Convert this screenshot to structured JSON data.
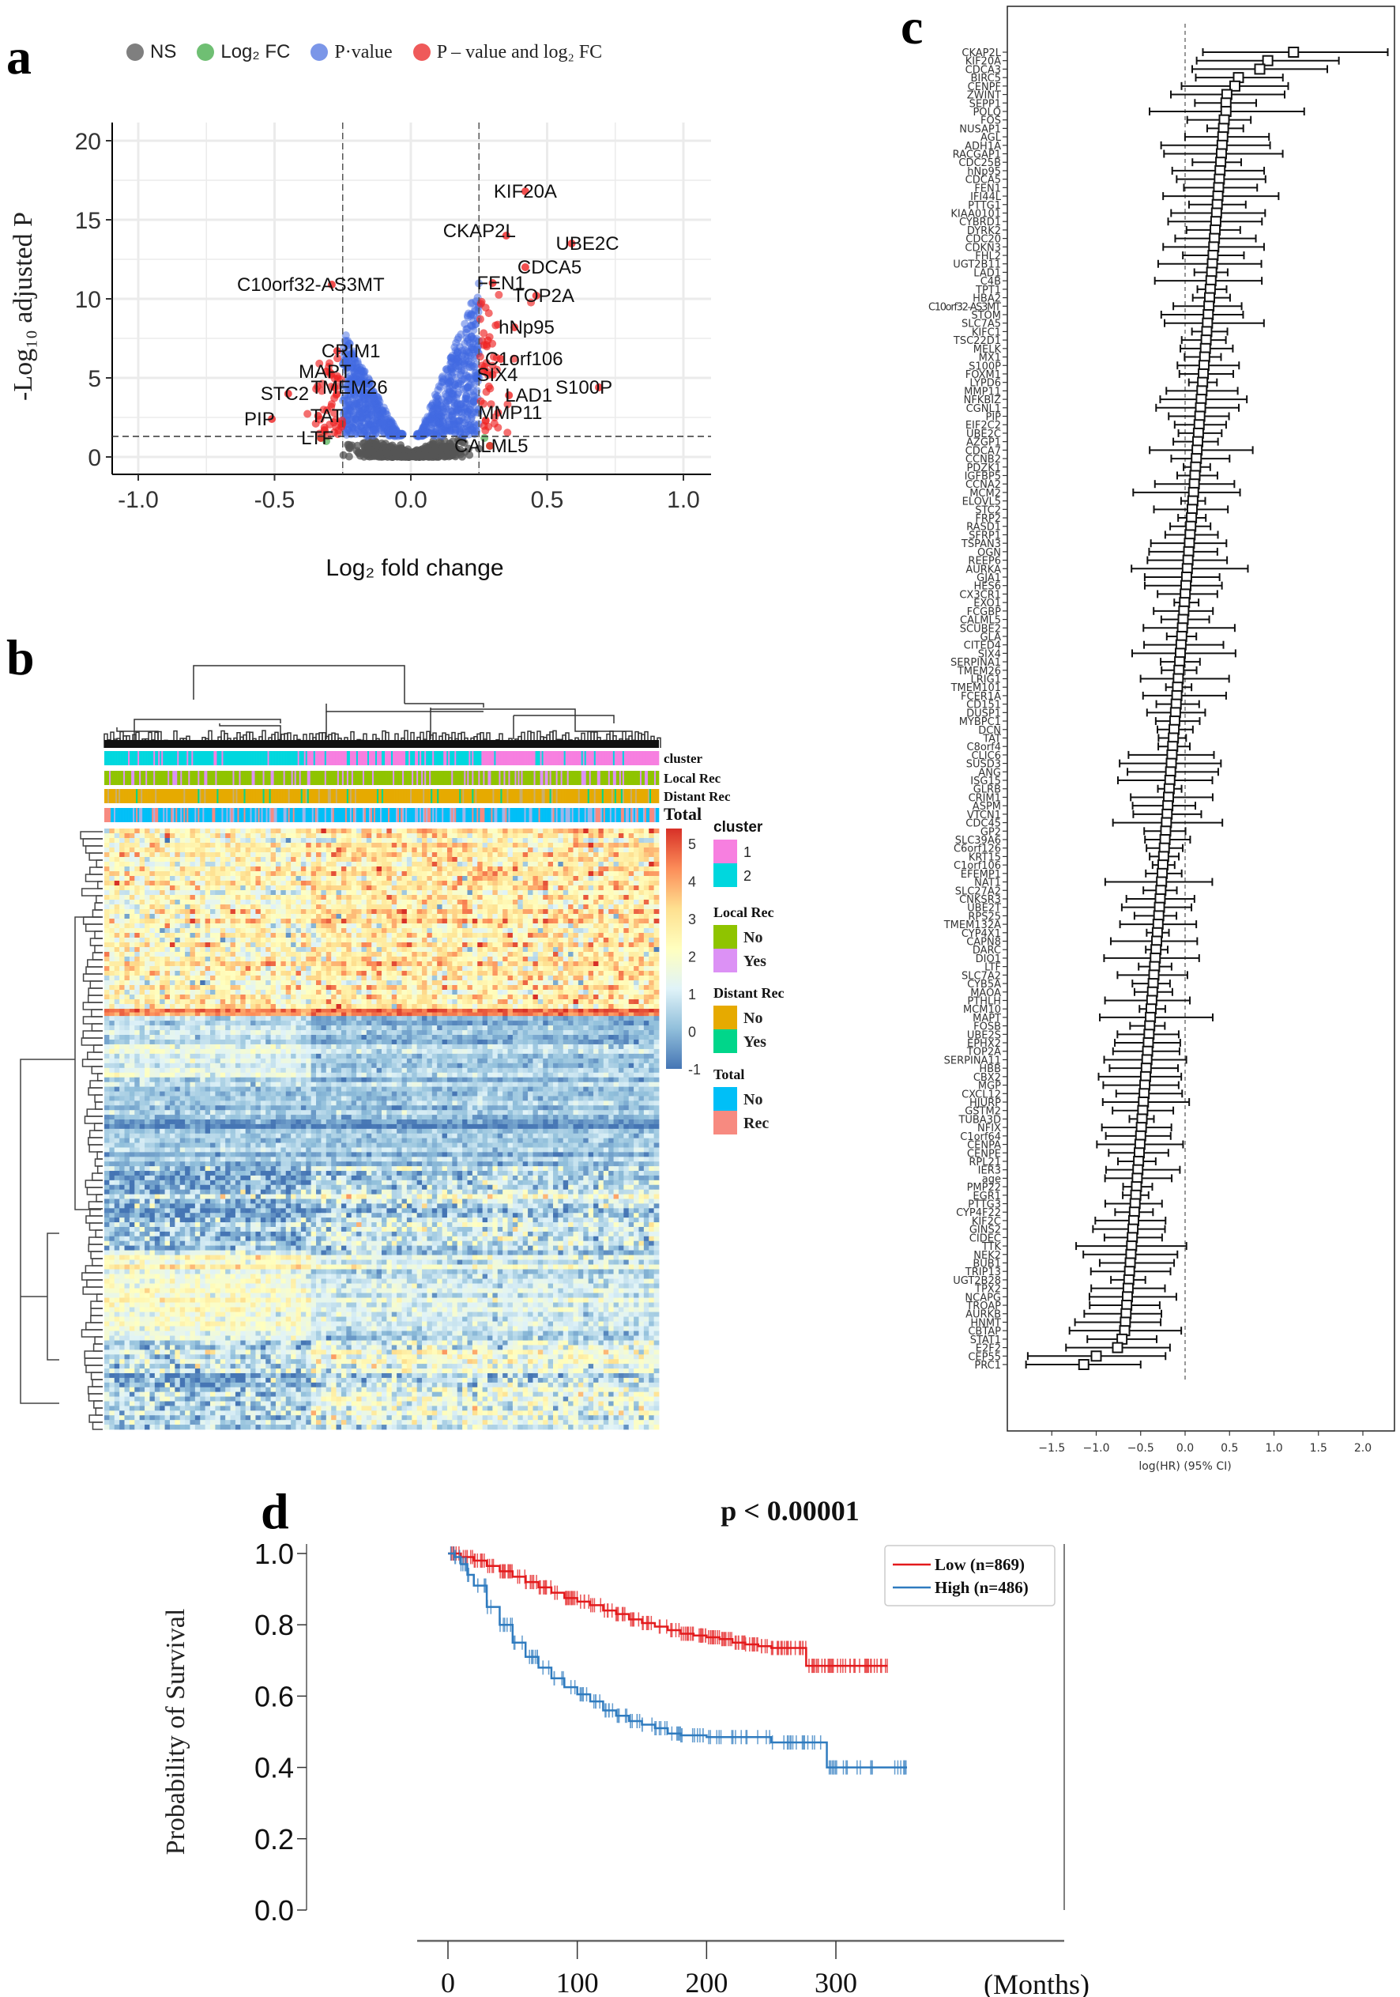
{
  "panels": {
    "a": {
      "letter": "a",
      "legend": [
        {
          "label": "NS",
          "color": "#7f7f7f"
        },
        {
          "label": "Log₂ FC",
          "color": "#6fbf73"
        },
        {
          "label": "P·value",
          "color": "#7b96e8"
        },
        {
          "label": "P – value and log₂ FC",
          "color": "#ef5a5a"
        }
      ]
    },
    "b": {
      "letter": "b",
      "annotation_labels": [
        "cluster",
        "Local Rec",
        "Distant Rec",
        "Total"
      ],
      "colorbar": {
        "ticks": [
          "5",
          "4",
          "3",
          "2",
          "1",
          "0",
          "-1"
        ],
        "min": -1,
        "max": 5.4
      },
      "legend_groups": [
        {
          "title": "cluster",
          "items": [
            {
              "label": "1",
              "color": "#f77fe0"
            },
            {
              "label": "2",
              "color": "#00d7de"
            }
          ]
        },
        {
          "title": "Local Rec",
          "items": [
            {
              "label": "No",
              "color": "#8fc400"
            },
            {
              "label": "Yes",
              "color": "#dc91f5"
            }
          ]
        },
        {
          "title": "Distant Rec",
          "items": [
            {
              "label": "No",
              "color": "#e6aa00"
            },
            {
              "label": "Yes",
              "color": "#00d68a"
            }
          ]
        },
        {
          "title": "Total",
          "items": [
            {
              "label": "No",
              "color": "#00bff7"
            },
            {
              "label": "Rec",
              "color": "#f78a80"
            }
          ]
        }
      ]
    },
    "c": {
      "letter": "c"
    },
    "d": {
      "letter": "d"
    }
  },
  "chart_data": [
    {
      "id": "volcano",
      "type": "scatter",
      "title": "",
      "xlabel": "Log₂ fold change",
      "ylabel": "-Log₁₀ adjusted P",
      "xlim": [
        -1.1,
        1.1
      ],
      "ylim": [
        -0.8,
        21
      ],
      "xticks": [
        "-1.0",
        "-0.5",
        "0.0",
        "0.5",
        "1.0"
      ],
      "xtick_values": [
        -1.0,
        -0.5,
        0.0,
        0.5,
        1.0
      ],
      "yticks": [
        "0",
        "5",
        "10",
        "15",
        "20"
      ],
      "ytick_values": [
        0,
        5,
        10,
        15,
        20
      ],
      "grid": true,
      "thresholds": {
        "log2fc": 0.25,
        "neglog10p": 1.3
      },
      "series": [
        {
          "name": "NS",
          "color": "#555555",
          "description": "dense cloud, |log2FC|<0.25 and -log10P<1.3"
        },
        {
          "name": "Log2 FC",
          "color": "#4caf50",
          "points": [
            [
              -0.33,
              1.2
            ],
            [
              -0.31,
              1.0
            ],
            [
              0.29,
              0.7
            ],
            [
              0.27,
              1.2
            ]
          ]
        },
        {
          "name": "P-value",
          "color": "#4169e1",
          "description": "dense cloud, |log2FC|<0.25 and -log10P>1.3, up to ~12.5"
        },
        {
          "name": "P-value and log2 FC",
          "color": "#ee2222",
          "description": "significant in both"
        }
      ],
      "labeled_points": [
        {
          "gene": "KIF20A",
          "x": 0.42,
          "y": 16.8
        },
        {
          "gene": "CKAP2L",
          "x": 0.35,
          "y": 14.0
        },
        {
          "gene": "UBE2C",
          "x": 0.59,
          "y": 13.5
        },
        {
          "gene": "CDCA5",
          "x": 0.42,
          "y": 12.0
        },
        {
          "gene": "C10orf32-AS3MT",
          "x": -0.29,
          "y": 10.9
        },
        {
          "gene": "FEN1",
          "x": 0.3,
          "y": 11.0
        },
        {
          "gene": "TOP2A",
          "x": 0.46,
          "y": 10.2
        },
        {
          "gene": "hNp95",
          "x": 0.38,
          "y": 8.2
        },
        {
          "gene": "CRIM1",
          "x": -0.27,
          "y": 6.7
        },
        {
          "gene": "C1orf106",
          "x": 0.33,
          "y": 6.2
        },
        {
          "gene": "SIX4",
          "x": 0.3,
          "y": 5.2
        },
        {
          "gene": "MAPT",
          "x": -0.31,
          "y": 5.4
        },
        {
          "gene": "S100P",
          "x": 0.69,
          "y": 4.4
        },
        {
          "gene": "LAD1",
          "x": 0.36,
          "y": 3.9
        },
        {
          "gene": "TMEM26",
          "x": -0.28,
          "y": 4.4
        },
        {
          "gene": "STC2",
          "x": -0.45,
          "y": 4.0
        },
        {
          "gene": "PIP",
          "x": -0.51,
          "y": 2.4
        },
        {
          "gene": "TAT",
          "x": -0.34,
          "y": 2.6
        },
        {
          "gene": "MMP11",
          "x": 0.32,
          "y": 2.8
        },
        {
          "gene": "LTF",
          "x": -0.33,
          "y": 1.2
        },
        {
          "gene": "CALML5",
          "x": 0.29,
          "y": 0.7
        }
      ]
    },
    {
      "id": "heatmap",
      "type": "heatmap",
      "title": "",
      "colorscale": [
        "#4575b4",
        "#91bfdb",
        "#e0f3f8",
        "#ffffbf",
        "#fee090",
        "#fc8d59",
        "#d73027"
      ],
      "value_range": [
        -1,
        5.4
      ],
      "row_bands": [
        {
          "rows": "top block",
          "left_cluster_level": 2.3,
          "right_cluster_level": 2.7
        },
        {
          "rows": "thin red line",
          "left_cluster_level": 4.6,
          "right_cluster_level": 5.0
        },
        {
          "rows": "upper blue block",
          "left_cluster_level": 0.7,
          "right_cluster_level": 0.0
        },
        {
          "rows": "middle blue block",
          "left_cluster_level": 0.0,
          "right_cluster_level": 0.6
        },
        {
          "rows": "lower yellow block",
          "left_cluster_level": 1.9,
          "right_cluster_level": 1.1
        },
        {
          "rows": "bottom mixed block",
          "left_cluster_level": 0.5,
          "right_cluster_level": 1.4
        }
      ],
      "column_clusters": "cluster 2 (cyan) predominantly left ~37%, cluster 1 (pink) right"
    },
    {
      "id": "forest",
      "type": "scatter",
      "title": "",
      "xlabel": "log(HR) (95% CI)",
      "xlim": [
        -1.9,
        2.4
      ],
      "xticks": [
        "−1.5",
        "−1.0",
        "−0.5",
        "0.0",
        "0.5",
        "1.0",
        "1.5",
        "2.0"
      ],
      "xtick_values": [
        -1.5,
        -1.0,
        -0.5,
        0.0,
        0.5,
        1.0,
        1.5,
        2.0
      ],
      "reference_line": 0.0,
      "genes": [
        "CKAP2L",
        "KIF20A",
        "CDCA3",
        "BIRC5",
        "CENPF",
        "ZWINT",
        "SEPP1",
        "POLQ",
        "FOS",
        "NUSAP1",
        "AGL",
        "ADH1A",
        "RACGAP1",
        "CDC25B",
        "hNp95",
        "CDCA5",
        "FEN1",
        "IFI44L",
        "PTTG1",
        "KIAA0101",
        "CYBRD1",
        "DYRK2",
        "CDC20",
        "CDKN3",
        "FHL2",
        "UGT2B11",
        "LAD1",
        "C4B",
        "TPT1",
        "HBA2",
        "C10orf32-AS3MT",
        "STOM",
        "SLC7A5",
        "KIFC1",
        "TSC22D1",
        "MELK",
        "MX1",
        "S100P",
        "FOXM1",
        "LYPD6",
        "MMP11",
        "NFKBIZ",
        "CGNL1",
        "PIP",
        "EIF2C2",
        "UBE2C",
        "AZGP1",
        "CDCA7",
        "CCNB2",
        "PDZK1",
        "IGFBP5",
        "CCNA2",
        "MCM2",
        "ELOVL5",
        "STC2",
        "FRP2",
        "RASD1",
        "SFRP1",
        "TSPAN3",
        "OGN",
        "REEP6",
        "AURKA",
        "GJA1",
        "HES6",
        "CX3CR1",
        "EXO1",
        "FCGBP",
        "CALML5",
        "SCUBE2",
        "GLA",
        "CITED4",
        "SIX4",
        "SERPINA1",
        "TMEM26",
        "LRIG1",
        "TMEM101",
        "FCER1A",
        "CD151",
        "DUSP1",
        "MYBPC1",
        "DCN",
        "TAT",
        "C8orf4",
        "CLIC6",
        "SUSD3",
        "ANG",
        "ISG15",
        "GLRB",
        "CRIM1",
        "ASPM",
        "VTCN1",
        "CDC45",
        "GP2",
        "SLC39A6",
        "C6orf126",
        "KRT15",
        "C1orf106",
        "EFEMP1",
        "NAT1",
        "SLC27A2",
        "CNKSR3",
        "UBE2T",
        "RPS25",
        "TMEM132A",
        "CYP4X1",
        "CAPN8",
        "DARC",
        "DIO1",
        "LTF",
        "SLC7A2",
        "CYB5A",
        "MAOA",
        "PTHLH",
        "MCM10",
        "MAPT",
        "FOSB",
        "UBE2S",
        "EPHX2",
        "TOP2A",
        "SERPINA11",
        "HBB",
        "CBX2",
        "MGP",
        "CXCL12",
        "HJURP",
        "GSTM2",
        "TUBA3D",
        "NFIX",
        "C1orf64",
        "CENPA",
        "CENPE",
        "RPL21",
        "IER3",
        "age",
        "PMP22",
        "EGR1",
        "PTTG3",
        "CYP4F22",
        "KIF2C",
        "GINS2",
        "CIDEC",
        "TTK",
        "NEK2",
        "BUB1",
        "TRIP13",
        "UGT2B28",
        "TPX2",
        "NCAPG",
        "TROAP",
        "AURKB",
        "HNMT",
        "CBTAP",
        "STAT1",
        "E2F2",
        "CEP55",
        "PRC1"
      ],
      "top_points": [
        {
          "gene": "CKAP2L",
          "hr": 1.22,
          "lo": 0.2,
          "hi": 2.28
        },
        {
          "gene": "KIF20A",
          "hr": 0.93,
          "lo": 0.13,
          "hi": 1.73
        },
        {
          "gene": "CDCA3",
          "hr": 0.84,
          "lo": 0.08,
          "hi": 1.6
        },
        {
          "gene": "BIRC5",
          "hr": 0.6,
          "lo": 0.12,
          "hi": 1.1
        },
        {
          "gene": "CENPF",
          "hr": 0.56,
          "lo": -0.04,
          "hi": 1.16
        },
        {
          "gene": "ZWINT",
          "hr": 0.47,
          "lo": -0.16,
          "hi": 1.12
        },
        {
          "gene": "SEPP1",
          "hr": 0.46,
          "lo": 0.11,
          "hi": 0.8
        },
        {
          "gene": "POLQ",
          "hr": 0.46,
          "lo": -0.4,
          "hi": 1.34
        }
      ],
      "bottom_points": [
        {
          "gene": "STAT1",
          "hr": -0.71,
          "lo": -1.1,
          "hi": -0.32
        },
        {
          "gene": "E2F2",
          "hr": -0.76,
          "lo": -1.34,
          "hi": -0.17
        },
        {
          "gene": "CEP55",
          "hr": -1.0,
          "lo": -1.77,
          "hi": -0.22
        },
        {
          "gene": "PRC1",
          "hr": -1.14,
          "lo": -1.79,
          "hi": -0.5
        }
      ],
      "trend": "log(HR) decreases monotonically from 1.22 (CKAP2L) to -1.14 (PRC1); most genes between 0.45 and -0.7"
    },
    {
      "id": "km",
      "type": "line",
      "title": "p < 0.00001",
      "xlabel": "(Months)",
      "ylabel": "Probability of Survival",
      "xlim": [
        -18,
        365
      ],
      "ylim": [
        0,
        1.04
      ],
      "xticks": [
        "0",
        "100",
        "200",
        "300"
      ],
      "xtick_values": [
        0,
        100,
        200,
        300
      ],
      "yticks": [
        "0.0",
        "0.2",
        "0.4",
        "0.6",
        "0.8",
        "1.0"
      ],
      "ytick_values": [
        0,
        0.2,
        0.4,
        0.6,
        0.8,
        1.0
      ],
      "legend": "top-right",
      "series": [
        {
          "name": "Low (n=869)",
          "color": "#e31a1c",
          "x": [
            0,
            10,
            20,
            30,
            40,
            50,
            60,
            70,
            80,
            90,
            100,
            110,
            120,
            130,
            140,
            150,
            160,
            170,
            180,
            190,
            200,
            210,
            220,
            230,
            240,
            250,
            260,
            270,
            277,
            277,
            290,
            300,
            310,
            320,
            330,
            340
          ],
          "y": [
            1.0,
            0.99,
            0.98,
            0.965,
            0.95,
            0.935,
            0.92,
            0.905,
            0.89,
            0.875,
            0.865,
            0.855,
            0.84,
            0.83,
            0.815,
            0.805,
            0.795,
            0.785,
            0.775,
            0.77,
            0.765,
            0.76,
            0.75,
            0.745,
            0.74,
            0.735,
            0.735,
            0.735,
            0.735,
            0.685,
            0.685,
            0.685,
            0.685,
            0.685,
            0.685,
            0.685
          ]
        },
        {
          "name": "High (n=486)",
          "color": "#2f7bbf",
          "x": [
            0,
            5,
            10,
            15,
            20,
            30,
            40,
            50,
            60,
            70,
            80,
            90,
            100,
            110,
            120,
            130,
            140,
            150,
            160,
            170,
            180,
            200,
            220,
            240,
            250,
            270,
            290,
            293,
            293,
            310,
            330,
            350,
            355
          ],
          "y": [
            1.0,
            0.99,
            0.97,
            0.94,
            0.91,
            0.85,
            0.8,
            0.75,
            0.71,
            0.68,
            0.65,
            0.625,
            0.605,
            0.585,
            0.56,
            0.545,
            0.53,
            0.52,
            0.51,
            0.495,
            0.49,
            0.485,
            0.485,
            0.485,
            0.47,
            0.47,
            0.47,
            0.47,
            0.4,
            0.4,
            0.4,
            0.4,
            0.4
          ]
        }
      ]
    }
  ]
}
